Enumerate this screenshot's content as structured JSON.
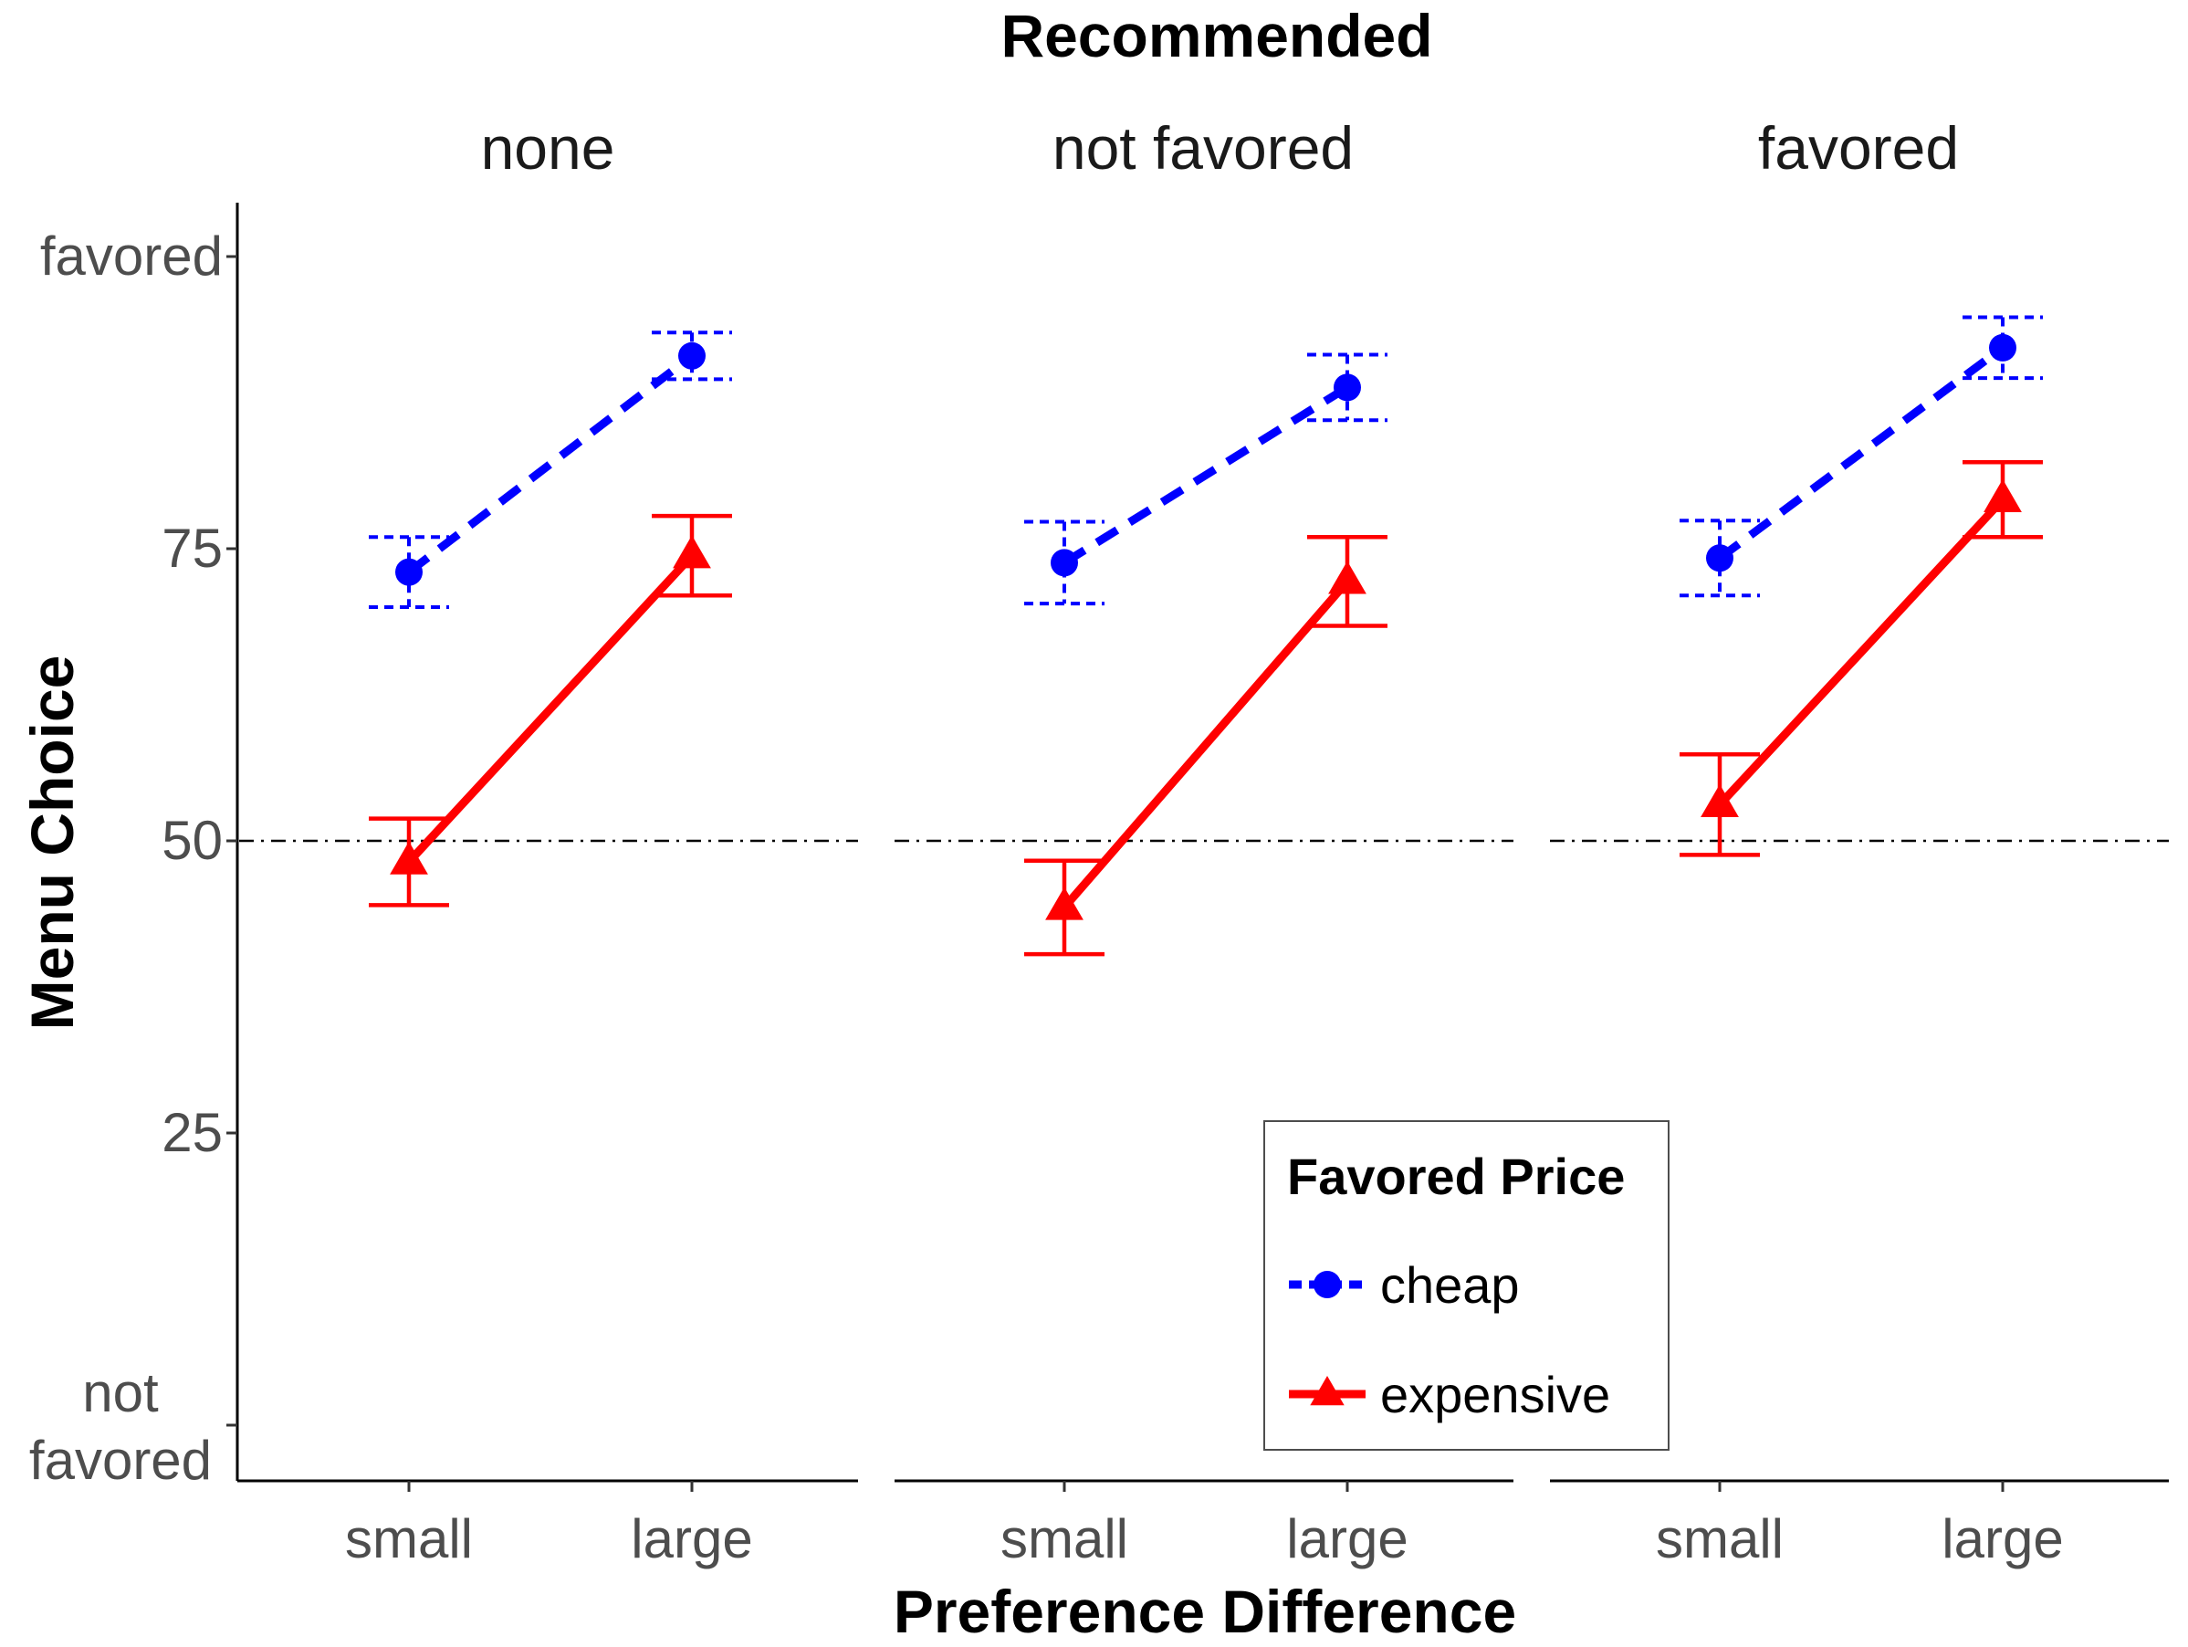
{
  "chart_data": {
    "type": "line",
    "title": "Recommended",
    "facets": [
      "none",
      "not favored",
      "favored"
    ],
    "categories": [
      "small",
      "large"
    ],
    "xlabel": "Preference Difference",
    "ylabel": "Menu Choice",
    "ylim": [
      0,
      105
    ],
    "yticks": [
      {
        "value": 100,
        "label": "favored"
      },
      {
        "value": 75,
        "label": "75"
      },
      {
        "value": 50,
        "label": "50"
      },
      {
        "value": 25,
        "label": "25"
      },
      {
        "value": 0,
        "label": "not favored"
      }
    ],
    "reference_line": 50,
    "legend_title": "Favored Price",
    "series": [
      {
        "name": "cheap",
        "color": "#0000ff",
        "linestyle": "dashed",
        "marker": "circle",
        "values": [
          [
            73.0,
            91.5
          ],
          [
            73.8,
            88.8
          ],
          [
            74.2,
            92.2
          ]
        ],
        "errors": [
          [
            3.0,
            2.0
          ],
          [
            3.5,
            2.8
          ],
          [
            3.2,
            2.6
          ]
        ]
      },
      {
        "name": "expensive",
        "color": "#ff0000",
        "linestyle": "solid",
        "marker": "triangle",
        "values": [
          [
            48.2,
            74.4
          ],
          [
            44.3,
            72.2
          ],
          [
            53.1,
            79.2
          ]
        ],
        "errors": [
          [
            3.7,
            3.4
          ],
          [
            4.0,
            3.8
          ],
          [
            4.3,
            3.2
          ]
        ]
      }
    ]
  }
}
